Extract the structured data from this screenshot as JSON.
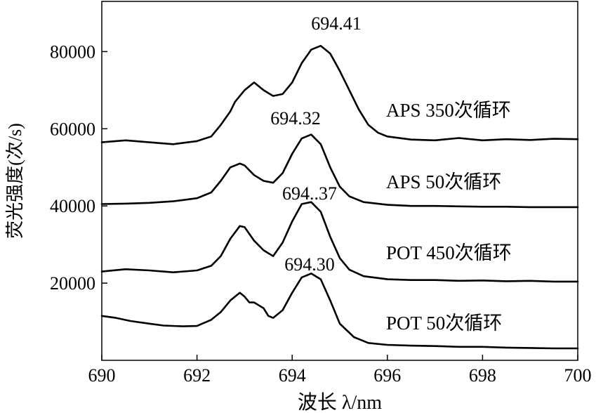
{
  "chart_data": {
    "type": "line",
    "title": "",
    "xlabel": "波长 λ/nm",
    "ylabel": "荧光强度(次/s)",
    "xlim": [
      690,
      700
    ],
    "ylim": [
      0,
      93000
    ],
    "x_ticks": [
      690,
      692,
      694,
      696,
      698,
      700
    ],
    "y_ticks": [
      20000,
      40000,
      60000,
      80000
    ],
    "grid": false,
    "legend": "none",
    "series": [
      {
        "name": "APS 350次循环",
        "x": [
          690.0,
          690.5,
          691.0,
          691.5,
          692.0,
          692.3,
          692.5,
          692.7,
          692.8,
          693.0,
          693.2,
          693.4,
          693.6,
          693.8,
          694.0,
          694.2,
          694.4,
          694.6,
          694.8,
          695.0,
          695.2,
          695.4,
          695.6,
          695.8,
          696.0,
          696.5,
          697.0,
          697.5,
          698.0,
          698.5,
          699.0,
          699.5,
          700.0
        ],
        "y": [
          56500,
          57000,
          56500,
          56000,
          56800,
          58000,
          61000,
          64500,
          67000,
          70000,
          72000,
          70000,
          68500,
          69000,
          72000,
          77000,
          80500,
          81500,
          79500,
          75000,
          70000,
          65000,
          61000,
          59000,
          58000,
          57200,
          57000,
          57600,
          57000,
          57300,
          57100,
          57400,
          57300
        ],
        "peak_label": "694.41"
      },
      {
        "name": "APS 50次循环",
        "x": [
          690.0,
          690.5,
          691.0,
          691.5,
          692.0,
          692.3,
          692.5,
          692.7,
          692.9,
          693.0,
          693.2,
          693.4,
          693.6,
          693.8,
          694.0,
          694.2,
          694.4,
          694.6,
          694.8,
          695.0,
          695.2,
          695.5,
          696.0,
          696.5,
          697.0,
          697.5,
          698.0,
          698.5,
          699.0,
          699.5,
          700.0
        ],
        "y": [
          40500,
          40600,
          40800,
          41200,
          42000,
          43500,
          46500,
          50000,
          51000,
          50500,
          48000,
          46500,
          46000,
          48500,
          53500,
          57500,
          58500,
          56000,
          50000,
          45000,
          42500,
          41000,
          40300,
          40000,
          40000,
          39900,
          39800,
          39800,
          39700,
          39700,
          39700
        ],
        "peak_label": "694.32"
      },
      {
        "name": "POT 450次循环",
        "x": [
          690.0,
          690.5,
          691.0,
          691.5,
          692.0,
          692.3,
          692.5,
          692.7,
          692.9,
          693.0,
          693.2,
          693.4,
          693.6,
          693.8,
          694.0,
          694.2,
          694.4,
          694.6,
          694.8,
          695.0,
          695.2,
          695.5,
          696.0,
          696.5,
          697.0,
          697.5,
          698.0,
          698.5,
          699.0,
          699.5,
          700.0
        ],
        "y": [
          23000,
          23600,
          23300,
          22800,
          23300,
          24500,
          27000,
          31500,
          34800,
          34500,
          31000,
          28500,
          27000,
          30500,
          36000,
          40500,
          41000,
          38500,
          32000,
          26500,
          23500,
          21800,
          21000,
          20800,
          20800,
          20600,
          20700,
          20500,
          20600,
          20400,
          20400
        ],
        "peak_label": "694..37"
      },
      {
        "name": "POT 50次循环",
        "x": [
          690.0,
          690.3,
          690.6,
          691.0,
          691.3,
          691.7,
          692.0,
          692.3,
          692.5,
          692.7,
          692.9,
          693.0,
          693.1,
          693.2,
          693.4,
          693.5,
          693.6,
          693.8,
          694.0,
          694.2,
          694.4,
          694.6,
          694.8,
          695.0,
          695.3,
          695.6,
          696.0,
          696.5,
          697.0,
          697.5,
          698.0,
          698.5,
          699.0,
          699.5,
          700.0
        ],
        "y": [
          11500,
          11000,
          10200,
          9500,
          9000,
          8800,
          8900,
          10500,
          12500,
          15500,
          17500,
          16500,
          15000,
          15000,
          13500,
          11500,
          11000,
          13000,
          17500,
          21500,
          22500,
          21000,
          15500,
          9500,
          6000,
          4500,
          4000,
          3800,
          3700,
          3500,
          3500,
          3300,
          3200,
          3100,
          3100
        ],
        "peak_label": "694.30"
      }
    ]
  }
}
